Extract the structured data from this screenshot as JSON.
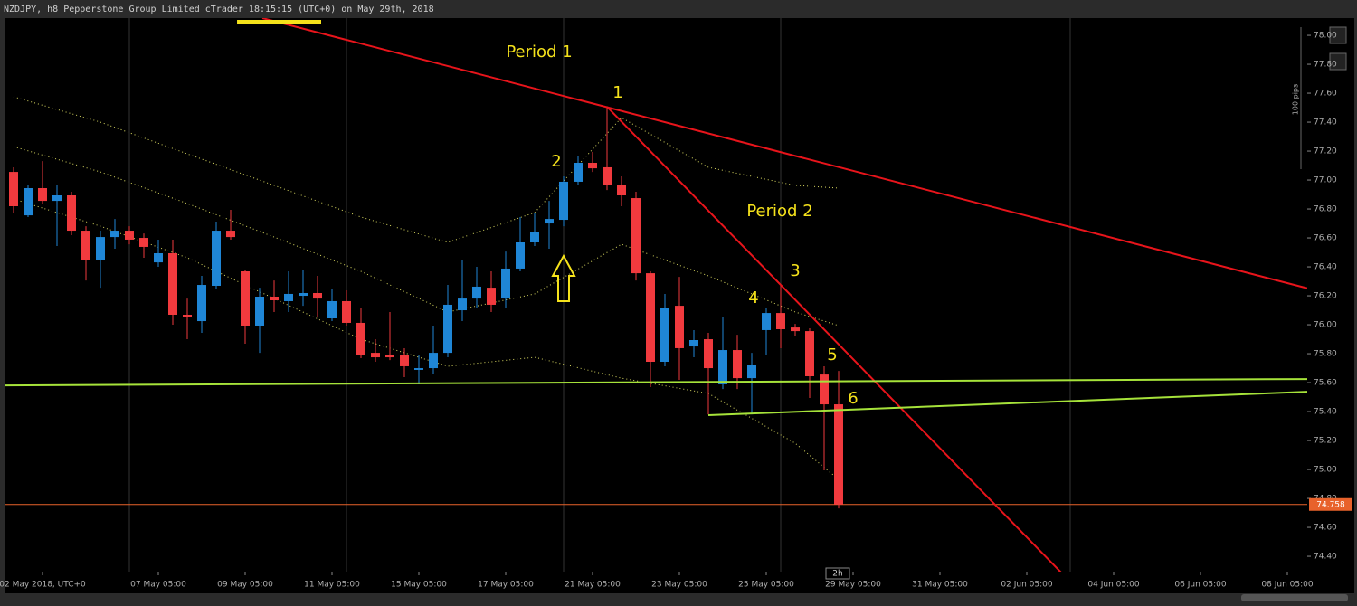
{
  "chart_data": {
    "type": "candlestick",
    "title": "NZDJPY, h8 Pepperstone Group Limited cTrader 18:15:15 (UTC+0) on May 29th, 2018",
    "x": [
      0,
      1,
      2,
      3,
      4,
      5,
      6,
      7,
      8,
      9,
      10,
      11,
      12,
      13,
      14,
      15,
      16,
      17,
      18,
      19,
      20,
      21,
      22,
      23,
      24,
      25,
      26,
      27,
      28,
      29,
      30,
      31,
      32,
      33,
      34,
      35,
      36,
      37,
      38,
      39,
      40,
      41,
      42,
      43,
      44,
      45,
      46,
      47,
      48,
      49,
      50,
      51,
      52,
      53,
      54,
      55,
      56,
      57
    ],
    "open": [
      77.056,
      76.756,
      76.944,
      76.856,
      76.894,
      76.65,
      76.444,
      76.606,
      76.65,
      76.6,
      76.431,
      76.494,
      76.069,
      76.025,
      76.269,
      76.65,
      76.369,
      75.994,
      76.194,
      76.163,
      76.2,
      76.219,
      76.044,
      76.163,
      76.013,
      75.806,
      75.794,
      75.794,
      75.688,
      75.7,
      75.806,
      76.1,
      76.181,
      76.256,
      76.181,
      76.388,
      76.569,
      76.7,
      76.725,
      76.988,
      77.119,
      77.088,
      76.963,
      76.875,
      76.356,
      75.744,
      76.131,
      75.85,
      75.9,
      75.588,
      75.825,
      75.631,
      75.963,
      76.081,
      75.981,
      75.956,
      75.656,
      75.45
    ],
    "high": [
      77.088,
      76.963,
      77.131,
      76.963,
      76.919,
      76.681,
      76.65,
      76.731,
      76.681,
      76.631,
      76.588,
      76.588,
      76.181,
      76.338,
      76.713,
      76.794,
      76.381,
      76.256,
      76.306,
      76.369,
      76.375,
      76.338,
      76.244,
      76.238,
      76.119,
      75.9,
      76.088,
      75.838,
      75.788,
      75.994,
      76.275,
      76.444,
      76.4,
      76.369,
      76.506,
      76.744,
      76.775,
      76.856,
      77.025,
      77.169,
      77.194,
      77.506,
      77.025,
      76.919,
      76.369,
      76.213,
      76.331,
      75.963,
      75.944,
      76.056,
      75.931,
      75.806,
      76.119,
      76.275,
      76.006,
      75.975,
      75.713,
      75.681
    ],
    "low": [
      76.775,
      76.744,
      76.838,
      76.544,
      76.619,
      76.306,
      76.256,
      76.525,
      76.556,
      76.463,
      76.4,
      76.0,
      75.9,
      75.944,
      76.244,
      76.588,
      75.869,
      75.806,
      76.088,
      76.088,
      76.131,
      76.056,
      76.025,
      75.994,
      75.769,
      75.744,
      75.756,
      75.638,
      75.588,
      75.663,
      75.775,
      76.025,
      76.119,
      76.088,
      76.119,
      76.369,
      76.544,
      76.525,
      76.681,
      76.963,
      77.056,
      76.931,
      76.819,
      76.306,
      75.569,
      75.713,
      75.619,
      75.775,
      75.381,
      75.556,
      75.556,
      75.381,
      75.794,
      75.838,
      75.919,
      75.494,
      74.994,
      74.731
    ],
    "close": [
      76.819,
      76.944,
      76.856,
      76.894,
      76.65,
      76.444,
      76.606,
      76.65,
      76.588,
      76.538,
      76.494,
      76.069,
      76.056,
      76.275,
      76.65,
      76.606,
      75.994,
      76.194,
      76.169,
      76.213,
      76.219,
      76.181,
      76.163,
      76.013,
      75.788,
      75.775,
      75.775,
      75.713,
      75.7,
      75.806,
      76.138,
      76.181,
      76.263,
      76.138,
      76.388,
      76.569,
      76.638,
      76.731,
      76.988,
      77.119,
      77.081,
      76.963,
      76.894,
      76.356,
      75.744,
      76.119,
      75.838,
      75.894,
      75.7,
      75.825,
      75.631,
      75.725,
      76.081,
      75.969,
      75.956,
      75.644,
      75.45,
      74.758
    ],
    "up_color": "#1f86d6",
    "down_color": "#f13a3e",
    "xlim": [
      -0.625,
      89.375
    ],
    "xticks": [
      {
        "value": 2,
        "label": "02 May 2018, UTC+0"
      },
      {
        "value": 10,
        "label": "07 May 05:00"
      },
      {
        "value": 16,
        "label": "09 May 05:00"
      },
      {
        "value": 22,
        "label": "11 May 05:00"
      },
      {
        "value": 28,
        "label": "15 May 05:00"
      },
      {
        "value": 34,
        "label": "17 May 05:00"
      },
      {
        "value": 40,
        "label": "21 May 05:00"
      },
      {
        "value": 46,
        "label": "23 May 05:00"
      },
      {
        "value": 52,
        "label": "25 May 05:00"
      },
      {
        "value": 58,
        "label": "29 May 05:00"
      },
      {
        "value": 64,
        "label": "31 May 05:00"
      },
      {
        "value": 70,
        "label": "02 Jun 05:00"
      },
      {
        "value": 76,
        "label": "04 Jun 05:00"
      },
      {
        "value": 82,
        "label": "06 Jun 05:00"
      },
      {
        "value": 88,
        "label": "08 Jun 05:00"
      }
    ],
    "ylim": [
      74.294,
      78.119
    ],
    "yticks": [
      {
        "value": 74.4,
        "label": "74.40"
      },
      {
        "value": 74.6,
        "label": "74.60"
      },
      {
        "value": 74.8,
        "label": "74.80"
      },
      {
        "value": 75.0,
        "label": "75.00"
      },
      {
        "value": 75.2,
        "label": "75.20"
      },
      {
        "value": 75.4,
        "label": "75.40"
      },
      {
        "value": 75.6,
        "label": "75.60"
      },
      {
        "value": 75.8,
        "label": "75.80"
      },
      {
        "value": 76.0,
        "label": "76.00"
      },
      {
        "value": 76.2,
        "label": "76.20"
      },
      {
        "value": 76.4,
        "label": "76.40"
      },
      {
        "value": 76.6,
        "label": "76.60"
      },
      {
        "value": 76.8,
        "label": "76.80"
      },
      {
        "value": 77.0,
        "label": "77.00"
      },
      {
        "value": 77.2,
        "label": "77.20"
      },
      {
        "value": 77.4,
        "label": "77.40"
      },
      {
        "value": 77.6,
        "label": "77.60"
      },
      {
        "value": 77.8,
        "label": "77.80"
      },
      {
        "value": 78.0,
        "label": "78.00"
      }
    ],
    "last_price": 74.758,
    "last_price_color": "#e8622b",
    "bands": {
      "color": "#d8d860",
      "x": [
        0,
        6,
        12,
        18,
        24,
        30,
        36,
        42,
        48,
        54,
        57
      ],
      "upper": [
        77.575,
        77.4,
        77.181,
        76.963,
        76.744,
        76.569,
        76.775,
        77.431,
        77.088,
        76.963,
        76.944
      ],
      "middle": [
        77.231,
        77.056,
        76.838,
        76.606,
        76.369,
        76.088,
        76.213,
        76.556,
        76.338,
        76.088,
        75.994
      ],
      "lower": [
        76.869,
        76.681,
        76.463,
        76.181,
        75.9,
        75.713,
        75.775,
        75.631,
        75.525,
        75.181,
        74.931
      ]
    },
    "trendlines": [
      {
        "color": "#e8141b",
        "x": [
          17.19,
          89.69
        ],
        "y": [
          78.119,
          76.244
        ]
      },
      {
        "color": "#e8141b",
        "x": [
          41,
          72.5
        ],
        "y": [
          77.506,
          74.275
        ]
      },
      {
        "color": "#a6e33a",
        "x": [
          -0.625,
          89.69
        ],
        "y": [
          75.581,
          75.625
        ]
      },
      {
        "color": "#a6e33a",
        "x": [
          48,
          89.69
        ],
        "y": [
          75.375,
          75.538
        ]
      },
      {
        "color": "#f5e21b",
        "x": [
          15.44,
          21.25
        ],
        "y": [
          78.094,
          78.094
        ]
      }
    ],
    "annotations": [
      "Period 1",
      "Period 2",
      "1",
      "2",
      "3",
      "4",
      "5",
      "6"
    ],
    "pips_label": "100 pips",
    "timeframe": "2h"
  }
}
